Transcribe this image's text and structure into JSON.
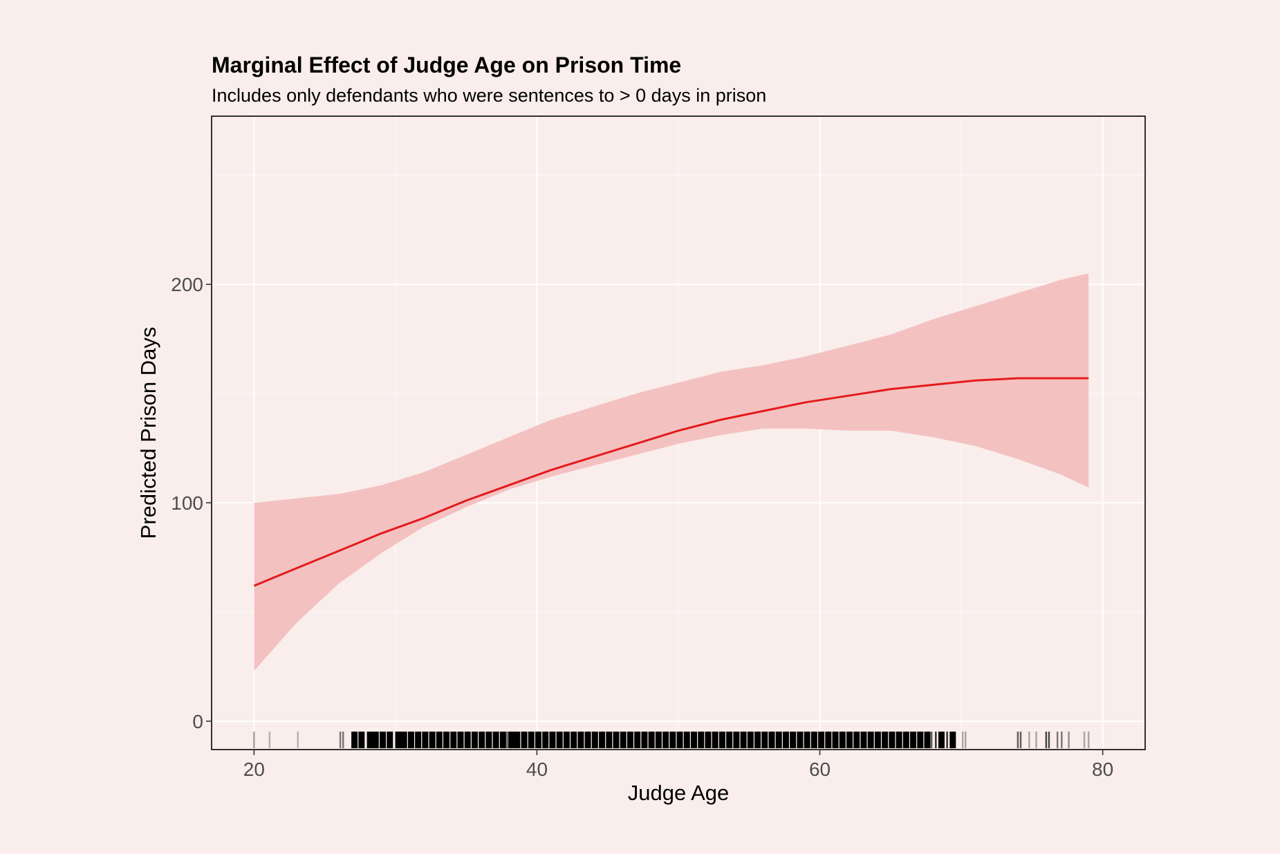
{
  "chart_data": {
    "type": "line",
    "title": "Marginal Effect of Judge Age on Prison Time",
    "subtitle": "Includes only defendants who were sentences to > 0 days in prison",
    "xlabel": "Judge Age",
    "ylabel": "Predicted Prison Days",
    "xlim": [
      17,
      83
    ],
    "ylim": [
      -13,
      277
    ],
    "x_ticks": [
      20,
      40,
      60,
      80
    ],
    "y_ticks": [
      0,
      100,
      200
    ],
    "grid": true,
    "legend": "none",
    "colors": {
      "line": "#e31a1c",
      "ribbon": "#f4c1c1",
      "background": "#f9eeec",
      "grid": "#ffffff",
      "rug": "#000000"
    },
    "series": [
      {
        "type": "line",
        "x": [
          20,
          23,
          26,
          29,
          32,
          35,
          38,
          41,
          44,
          47,
          50,
          53,
          56,
          59,
          62,
          65,
          68,
          71,
          74,
          77,
          79
        ],
        "y": [
          62,
          70,
          78,
          86,
          93,
          101,
          108,
          115,
          121,
          127,
          133,
          138,
          142,
          146,
          149,
          152,
          154,
          156,
          157,
          157,
          157
        ],
        "ribbon_lower": [
          23,
          45,
          63,
          77,
          89,
          98,
          106,
          112,
          117,
          122,
          127,
          131,
          134,
          134,
          133,
          133,
          130,
          126,
          120,
          113,
          107
        ],
        "ribbon_upper": [
          100,
          102,
          104,
          108,
          114,
          122,
          130,
          138,
          144,
          150,
          155,
          160,
          163,
          167,
          172,
          177,
          184,
          190,
          196,
          202,
          205
        ]
      }
    ],
    "rug": {
      "x": [
        20,
        21.1,
        23.1,
        26.1,
        26.3,
        27.1,
        27.6,
        28.2,
        28.6,
        29.1,
        29.6,
        30.2,
        30.6,
        31.1,
        31.6,
        32.1,
        32.6,
        33.1,
        33.6,
        34.1,
        34.6,
        35.1,
        35.6,
        36.1,
        36.6,
        37.1,
        37.6,
        37.9,
        38.2,
        38.6,
        39.1,
        39.6,
        40.1,
        40.6,
        41.1,
        41.6,
        42.1,
        42.6,
        43.1,
        43.6,
        44.1,
        44.6,
        45.1,
        45.6,
        46.1,
        46.6,
        47.1,
        47.6,
        48.1,
        48.6,
        49.1,
        49.6,
        50.1,
        50.6,
        51.1,
        51.6,
        52.1,
        52.6,
        53.1,
        53.6,
        54.1,
        54.6,
        55.1,
        55.6,
        56.1,
        56.6,
        57.1,
        57.6,
        58.1,
        58.6,
        59.1,
        59.6,
        60.1,
        60.6,
        61.1,
        61.6,
        62.1,
        62.6,
        63.1,
        63.6,
        64.1,
        64.6,
        65.1,
        65.6,
        66.1,
        66.6,
        67.1,
        67.6,
        67.9,
        68.2,
        68.6,
        69.0,
        69.4,
        70.1,
        70.3,
        74.0,
        74.2,
        74.8,
        75.3,
        76.0,
        76.2,
        76.8,
        77.1,
        77.6,
        78.7,
        79.0
      ],
      "opacity": [
        0.35,
        0.25,
        0.25,
        0.5,
        0.5,
        1,
        1,
        1,
        1,
        1,
        1,
        1,
        1,
        1,
        1,
        1,
        1,
        1,
        1,
        1,
        1,
        1,
        1,
        1,
        1,
        1,
        1,
        0.6,
        1,
        1,
        1,
        1,
        1,
        1,
        1,
        1,
        1,
        1,
        1,
        1,
        1,
        1,
        1,
        1,
        1,
        1,
        1,
        1,
        1,
        1,
        1,
        1,
        1,
        1,
        1,
        1,
        1,
        1,
        1,
        1,
        1,
        1,
        1,
        1,
        1,
        1,
        1,
        1,
        1,
        1,
        1,
        1,
        1,
        1,
        1,
        1,
        1,
        1,
        1,
        1,
        1,
        1,
        1,
        1,
        1,
        1,
        1,
        1,
        0.6,
        0.8,
        1,
        0.8,
        1,
        0.3,
        0.3,
        0.6,
        0.6,
        0.3,
        0.3,
        0.7,
        0.7,
        0.5,
        0.5,
        0.4,
        0.3,
        0.3
      ]
    }
  }
}
